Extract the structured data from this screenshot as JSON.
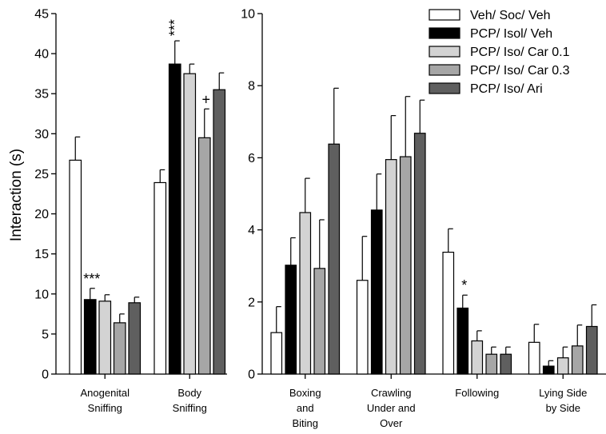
{
  "chart_data": [
    {
      "type": "bar",
      "ylabel": "Interaction (s)",
      "ylim": [
        0,
        45
      ],
      "yticks": [
        0,
        5,
        10,
        15,
        20,
        25,
        30,
        35,
        40,
        45
      ],
      "categories": [
        {
          "lines": [
            "Anogenital",
            "Sniffing"
          ]
        },
        {
          "lines": [
            "Body",
            "Sniffing"
          ]
        }
      ],
      "series": [
        {
          "name": "Veh/ Soc/ Veh",
          "color": "#ffffff",
          "values": [
            26.7,
            23.9
          ],
          "errors": [
            2.9,
            1.6
          ]
        },
        {
          "name": "PCP/ Isol/ Veh",
          "color": "#000000",
          "values": [
            9.3,
            38.7
          ],
          "errors": [
            1.4,
            2.9
          ]
        },
        {
          "name": "PCP/ Iso/ Car 0.1",
          "color": "#d3d3d3",
          "values": [
            9.1,
            37.5
          ],
          "errors": [
            0.8,
            1.2
          ]
        },
        {
          "name": "PCP/ Iso/ Car 0.3",
          "color": "#a6a6a6",
          "values": [
            6.4,
            29.5
          ],
          "errors": [
            1.1,
            3.6
          ]
        },
        {
          "name": "PCP/ Iso/ Ari",
          "color": "#5f5f5f",
          "values": [
            8.9,
            35.5
          ],
          "errors": [
            0.7,
            2.1
          ]
        }
      ],
      "annotations": [
        {
          "category": 0,
          "series": 1,
          "text": "***"
        },
        {
          "category": 1,
          "series": 1,
          "text": "***"
        },
        {
          "category": 1,
          "series": 3,
          "text": "+"
        }
      ]
    },
    {
      "type": "bar",
      "ylim": [
        0,
        10
      ],
      "yticks": [
        0,
        2,
        4,
        6,
        8,
        10
      ],
      "categories": [
        {
          "lines": [
            "Boxing",
            "and",
            "Biting"
          ]
        },
        {
          "lines": [
            "Crawling",
            "Under and",
            "Over"
          ]
        },
        {
          "lines": [
            "Following"
          ]
        },
        {
          "lines": [
            "Lying Side",
            "by Side"
          ]
        }
      ],
      "series": [
        {
          "name": "Veh/ Soc/ Veh",
          "color": "#ffffff",
          "values": [
            1.15,
            2.6,
            3.38,
            0.88
          ],
          "errors": [
            0.72,
            1.22,
            0.65,
            0.5
          ]
        },
        {
          "name": "PCP/ Isol/ Veh",
          "color": "#000000",
          "values": [
            3.02,
            4.55,
            1.83,
            0.22
          ],
          "errors": [
            0.76,
            1.0,
            0.36,
            0.15
          ]
        },
        {
          "name": "PCP/ Iso/ Car 0.1",
          "color": "#d3d3d3",
          "values": [
            4.48,
            5.95,
            0.92,
            0.45
          ],
          "errors": [
            0.95,
            1.22,
            0.28,
            0.3
          ]
        },
        {
          "name": "PCP/ Iso/ Car 0.3",
          "color": "#a6a6a6",
          "values": [
            2.93,
            6.03,
            0.55,
            0.78
          ],
          "errors": [
            1.35,
            1.67,
            0.2,
            0.58
          ]
        },
        {
          "name": "PCP/ Iso/ Ari",
          "color": "#5f5f5f",
          "values": [
            6.38,
            6.68,
            0.55,
            1.32
          ],
          "errors": [
            1.55,
            0.92,
            0.2,
            0.6
          ]
        }
      ],
      "annotations": [
        {
          "category": 2,
          "series": 1,
          "text": "*"
        }
      ]
    }
  ],
  "legend": {
    "placement": "top-right",
    "entries": [
      "Veh/ Soc/ Veh",
      "PCP/ Isol/ Veh",
      "PCP/ Iso/ Car 0.1",
      "PCP/ Iso/ Car 0.3",
      "PCP/ Iso/ Ari"
    ],
    "colors": [
      "#ffffff",
      "#000000",
      "#d3d3d3",
      "#a6a6a6",
      "#5f5f5f"
    ]
  }
}
